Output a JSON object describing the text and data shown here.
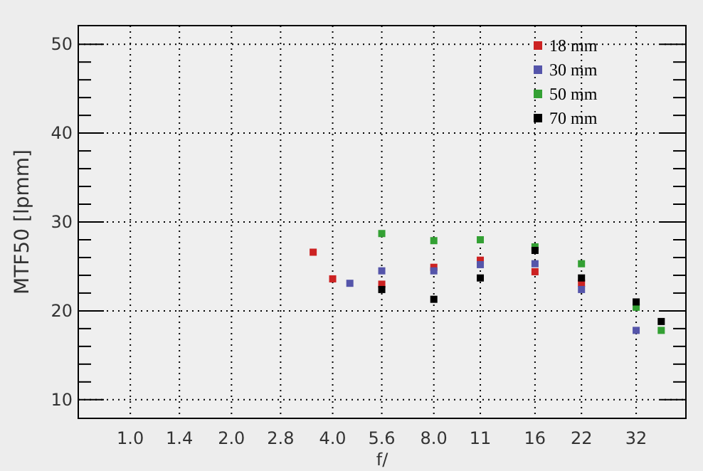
{
  "chart_data": {
    "type": "scatter",
    "xlabel": "f/",
    "ylabel": "MTF50 [lpmm]",
    "log": "x",
    "marker": "square",
    "grid": true,
    "legend": "top right",
    "xlim": [
      0.7,
      45
    ],
    "ylim": [
      7.9,
      52.1
    ],
    "xticks": [
      {
        "value": 1,
        "label": "1.0"
      },
      1.4,
      {
        "value": 2,
        "label": "2.0"
      },
      2.8,
      {
        "value": 4,
        "label": "4.0"
      },
      5.6,
      {
        "value": 8,
        "label": "8.0"
      },
      11,
      16,
      22,
      32
    ],
    "yticks": [
      10,
      {
        "value": 12,
        "label": null
      },
      {
        "value": 14,
        "label": null
      },
      {
        "value": 16,
        "label": null
      },
      {
        "value": 18,
        "label": null
      },
      20,
      {
        "value": 22,
        "label": null
      },
      {
        "value": 24,
        "label": null
      },
      {
        "value": 26,
        "label": null
      },
      {
        "value": 28,
        "label": null
      },
      30,
      {
        "value": 32,
        "label": null
      },
      {
        "value": 34,
        "label": null
      },
      {
        "value": 36,
        "label": null
      },
      {
        "value": 38,
        "label": null
      },
      40,
      {
        "value": 42,
        "label": null
      },
      {
        "value": 44,
        "label": null
      },
      {
        "value": 46,
        "label": null
      },
      {
        "value": 48,
        "label": null
      },
      50
    ],
    "series": [
      {
        "name": "18 mm",
        "color": "#cc2222",
        "x": [
          3.5,
          4,
          5.6,
          8,
          11,
          16,
          22
        ],
        "values": [
          26.6,
          23.6,
          23.0,
          24.9,
          25.7,
          24.4,
          23.1
        ]
      },
      {
        "name": "30 mm",
        "color": "#5555aa",
        "x": [
          4.5,
          5.6,
          8,
          11,
          16,
          22,
          32
        ],
        "values": [
          23.1,
          24.5,
          24.5,
          25.2,
          25.3,
          22.4,
          17.8
        ]
      },
      {
        "name": "50 mm",
        "color": "#33a033",
        "x": [
          5.6,
          8,
          11,
          16,
          22,
          32,
          38
        ],
        "values": [
          28.7,
          27.9,
          28.0,
          27.2,
          25.3,
          20.4,
          17.8
        ]
      },
      {
        "name": "70 mm",
        "color": "#000000",
        "x": [
          5.6,
          8,
          11,
          16,
          22,
          32,
          38
        ],
        "values": [
          22.4,
          21.3,
          23.7,
          26.8,
          23.7,
          21.0,
          18.8
        ]
      }
    ]
  }
}
